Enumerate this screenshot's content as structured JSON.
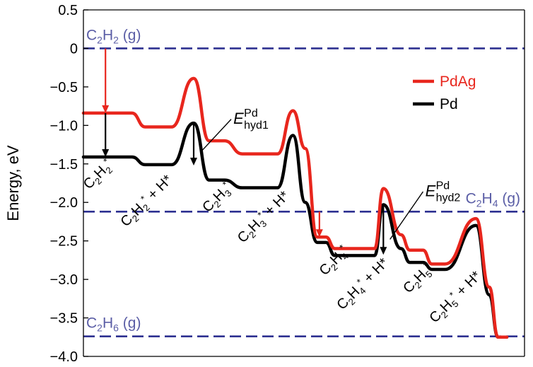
{
  "chart_data": {
    "type": "line",
    "ylabel": "Energy, eV",
    "ylim": [
      -4.0,
      0.5
    ],
    "yticks": [
      "0.5",
      "0",
      "-0.5",
      "-1.0",
      "-1.5",
      "-2.0",
      "-2.5",
      "-3.0",
      "-3.5",
      "-4.0"
    ],
    "ytick_values": [
      0.5,
      0,
      -0.5,
      -1.0,
      -1.5,
      -2.0,
      -2.5,
      -3.0,
      -3.5,
      -4.0
    ],
    "xlim": [
      0,
      100
    ],
    "legend_position": "top-right",
    "colors": {
      "PdAg": "#e8261d",
      "Pd": "#000000",
      "reference": "#2e3191",
      "arrow_black": "#000000"
    },
    "series": [
      {
        "name": "PdAg",
        "x": [
          0,
          11,
          14,
          20,
          25,
          28.5,
          32,
          36,
          44,
          47.5,
          50.3,
          53,
          55,
          57,
          66,
          68,
          72,
          74,
          77,
          79,
          82,
          89,
          92,
          94,
          96
        ],
        "y": [
          -0.84,
          -0.84,
          -1.02,
          -1.02,
          -0.39,
          -1.2,
          -1.2,
          -1.37,
          -1.37,
          -0.81,
          -1.3,
          -2.45,
          -2.45,
          -2.6,
          -2.6,
          -1.82,
          -2.42,
          -2.62,
          -2.62,
          -2.8,
          -2.8,
          -2.21,
          -3.1,
          -3.75,
          -3.75
        ]
      },
      {
        "name": "Pd",
        "x": [
          0,
          11,
          14,
          20,
          25,
          28.5,
          32,
          36,
          44,
          47.5,
          50.3,
          53,
          55,
          57,
          66,
          68,
          72,
          74,
          77,
          79,
          82,
          89,
          92,
          94,
          96
        ],
        "y": [
          -1.41,
          -1.41,
          -1.51,
          -1.51,
          -0.97,
          -1.71,
          -1.71,
          -1.81,
          -1.81,
          -1.13,
          -2.0,
          -2.52,
          -2.52,
          -2.69,
          -2.69,
          -2.03,
          -2.6,
          -2.78,
          -2.78,
          -2.87,
          -2.87,
          -2.3,
          -3.2,
          -3.75,
          -3.75
        ]
      }
    ],
    "references": [
      {
        "label_main": "C",
        "label_sub": "2",
        "label_main2": "H",
        "label_sub2": "2",
        "label_tail": " (g)",
        "value": 0
      },
      {
        "label_main": "C",
        "label_sub": "2",
        "label_main2": "H",
        "label_sub2": "4",
        "label_tail": " (g)",
        "value": -2.12
      },
      {
        "label_main": "C",
        "label_sub": "2",
        "label_main2": "H",
        "label_sub2": "6",
        "label_tail": " (g)",
        "value": -3.74
      }
    ],
    "arrows": [
      {
        "color": "#e8261d",
        "x": 5,
        "y1": 0,
        "y2": -0.84
      },
      {
        "color": "#000000",
        "x": 5,
        "y1": -0.84,
        "y2": -1.41
      },
      {
        "color": "#e8261d",
        "x": 53.5,
        "y1": -2.12,
        "y2": -2.45
      },
      {
        "color": "#000000",
        "x": 25,
        "y1": -0.97,
        "y2": -1.52
      },
      {
        "color": "#000000",
        "x": 68,
        "y1": -2.03,
        "y2": -2.68
      }
    ],
    "annotations": [
      {
        "main": "E",
        "sup": "Pd",
        "sub": "hyd1",
        "x": 34,
        "y": -0.98,
        "pointer": {
          "x1": 33.5,
          "y1": -0.92,
          "x2": 27,
          "y2": -1.32
        }
      },
      {
        "main": "E",
        "sup": "Pd",
        "sub": "hyd2",
        "x": 77.5,
        "y": -1.92,
        "pointer": {
          "x1": 77,
          "y1": -1.86,
          "x2": 69.5,
          "y2": -2.48
        }
      }
    ],
    "state_labels": [
      {
        "id": "c2h2",
        "base": "C2H2*",
        "tail": "",
        "x": 4,
        "y": -1.68
      },
      {
        "id": "c2h2-h",
        "base": "C2H2*",
        "tail": " + H*",
        "x": 15,
        "y": -2.02
      },
      {
        "id": "c2h3",
        "base": "C2H3*",
        "tail": "",
        "x": 31,
        "y": -1.98
      },
      {
        "id": "c2h3-h",
        "base": "C2H3*",
        "tail": " + H*",
        "x": 41.5,
        "y": -2.23
      },
      {
        "id": "c2h4",
        "base": "C2H4*",
        "tail": "",
        "x": 57.5,
        "y": -2.8
      },
      {
        "id": "c2h4-h",
        "base": "C2H4*",
        "tail": " + H*",
        "x": 64,
        "y": -3.1
      },
      {
        "id": "c2h5",
        "base": "C2H5*",
        "tail": "",
        "x": 76.5,
        "y": -3.03
      },
      {
        "id": "c2h5-h",
        "base": "C2H5*",
        "tail": " + H*",
        "x": 85,
        "y": -3.27
      }
    ]
  }
}
